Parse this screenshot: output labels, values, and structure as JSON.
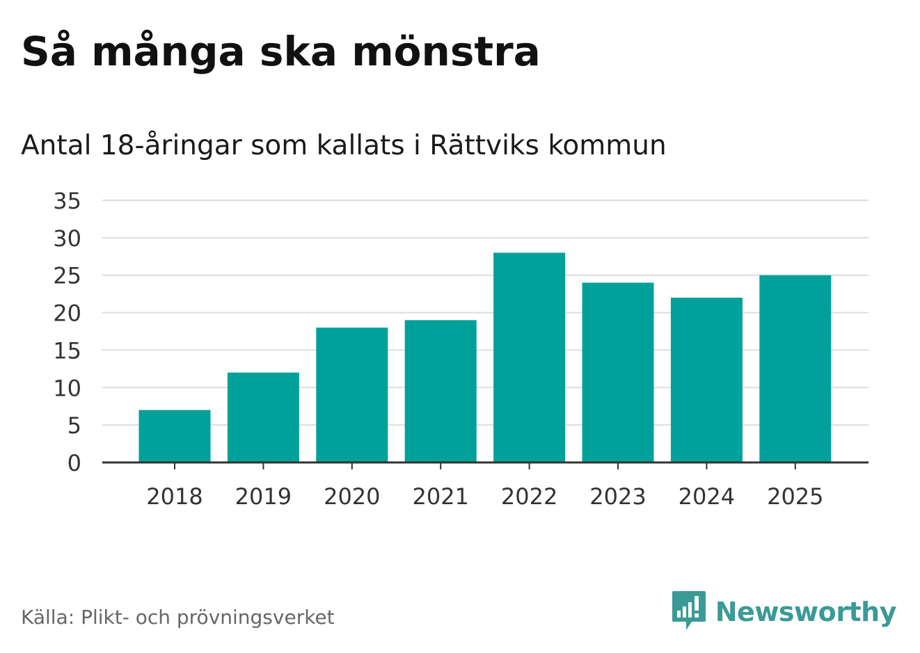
{
  "title": "Så många ska mönstra",
  "subtitle": "Antal 18-åringar som kallats i Rättviks kommun",
  "source": "Källa: Plikt- och prövningsverket",
  "logo": {
    "text": "Newsworthy",
    "icon": "newsworthy-logo-icon"
  },
  "colors": {
    "bar": "#00a19a",
    "grid": "#dddddd",
    "axis": "#333333",
    "logo": "#3a9a97"
  },
  "chart_data": {
    "type": "bar",
    "categories": [
      "2018",
      "2019",
      "2020",
      "2021",
      "2022",
      "2023",
      "2024",
      "2025"
    ],
    "values": [
      7,
      12,
      18,
      19,
      28,
      24,
      22,
      25
    ],
    "ylim": [
      0,
      35
    ],
    "yticks": [
      0,
      5,
      10,
      15,
      20,
      25,
      30,
      35
    ],
    "xlabel": "",
    "ylabel": "",
    "grid": true,
    "legend": "none"
  }
}
